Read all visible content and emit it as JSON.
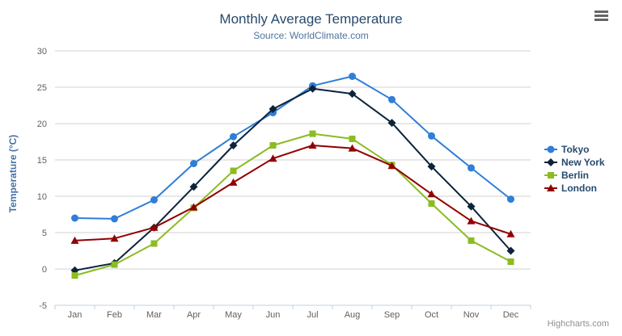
{
  "header": {
    "title": "Monthly Average Temperature",
    "subtitle": "Source: WorldClimate.com"
  },
  "credits_label": "Highcharts.com",
  "context_menu_icon": "hamburger-icon",
  "colors": {
    "title_text": "#274b6d",
    "subtitle_text": "#4d759e",
    "axis_label_text": "#606060",
    "y_axis_title_text": "#4572a7",
    "grid_line": "#d0d0d0",
    "x_axis_line": "#c0d0e0",
    "legend_text": "#274b6d",
    "credits_text": "#909090",
    "menu_icon": "#666666",
    "background": "#ffffff",
    "tokyo": "#2f7ed8",
    "new_york": "#0d233a",
    "berlin": "#8bbc21",
    "london": "#910000"
  },
  "chart_data": {
    "type": "line",
    "title": "Monthly Average Temperature",
    "subtitle": "Source: WorldClimate.com",
    "xlabel": "",
    "ylabel": "Temperature (°C)",
    "ylim": [
      -5,
      30
    ],
    "ytick_interval": 5,
    "grid": true,
    "legend_position": "right",
    "categories": [
      "Jan",
      "Feb",
      "Mar",
      "Apr",
      "May",
      "Jun",
      "Jul",
      "Aug",
      "Sep",
      "Oct",
      "Nov",
      "Dec"
    ],
    "series": [
      {
        "name": "Tokyo",
        "color": "#2f7ed8",
        "marker": "circle",
        "values": [
          7.0,
          6.9,
          9.5,
          14.5,
          18.2,
          21.5,
          25.2,
          26.5,
          23.3,
          18.3,
          13.9,
          9.6
        ]
      },
      {
        "name": "New York",
        "color": "#0d233a",
        "marker": "diamond",
        "values": [
          -0.2,
          0.8,
          5.7,
          11.3,
          17.0,
          22.0,
          24.8,
          24.1,
          20.1,
          14.1,
          8.6,
          2.5
        ]
      },
      {
        "name": "Berlin",
        "color": "#8bbc21",
        "marker": "square",
        "values": [
          -0.9,
          0.6,
          3.5,
          8.4,
          13.5,
          17.0,
          18.6,
          17.9,
          14.3,
          9.0,
          3.9,
          1.0
        ]
      },
      {
        "name": "London",
        "color": "#910000",
        "marker": "triangle",
        "values": [
          3.9,
          4.2,
          5.7,
          8.5,
          11.9,
          15.2,
          17.0,
          16.6,
          14.2,
          10.3,
          6.6,
          4.8
        ]
      }
    ]
  }
}
